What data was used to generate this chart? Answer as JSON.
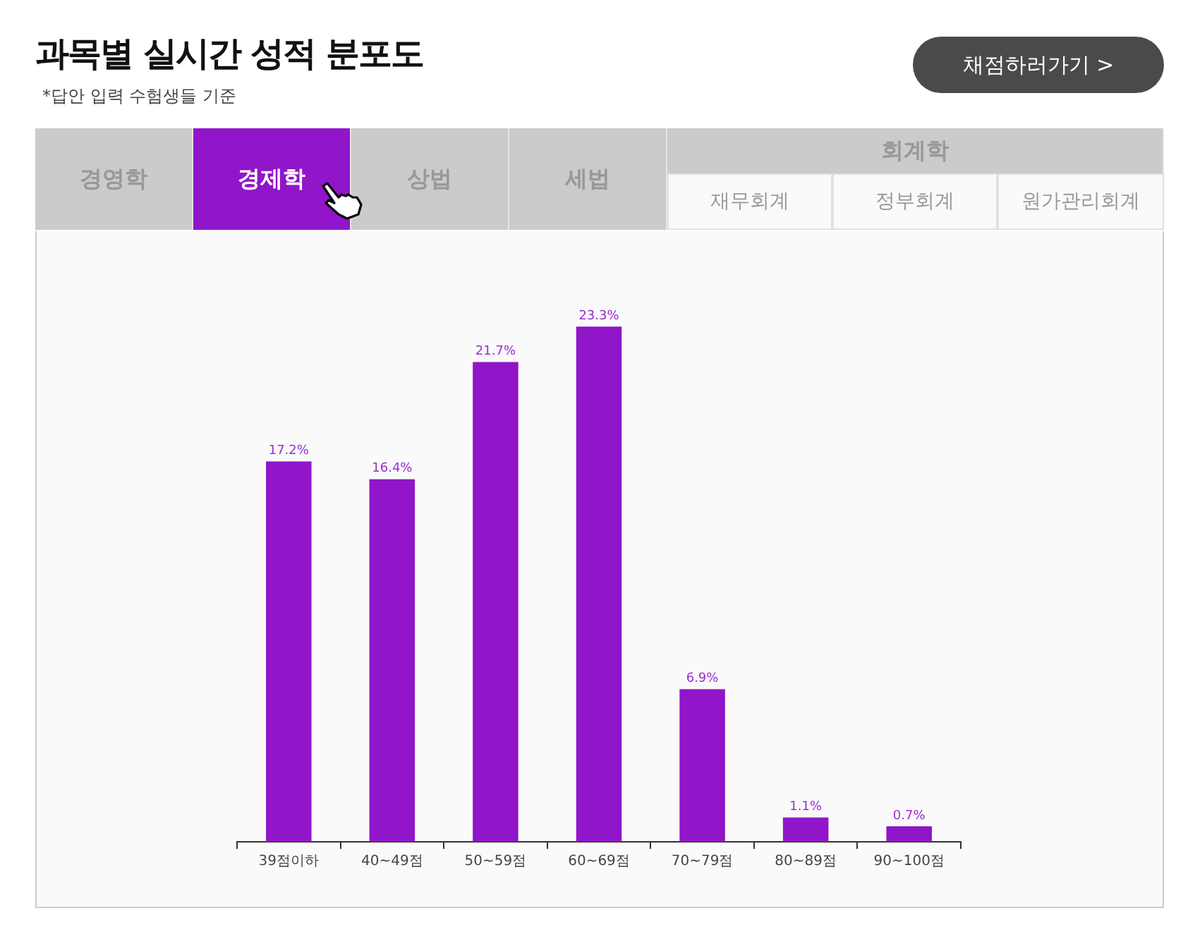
{
  "chart_data": {
    "type": "bar",
    "title": "과목별 실시간 성적 분포도",
    "subtitle": "*답안 입력 수험생들 기준",
    "categories": [
      "39점이하",
      "40~49점",
      "50~59점",
      "60~69점",
      "70~79점",
      "80~89점",
      "90~100점"
    ],
    "values": [
      17.2,
      16.4,
      21.7,
      23.3,
      6.9,
      1.1,
      0.7
    ],
    "value_labels": [
      "17.2%",
      "16.4%",
      "21.7%",
      "23.3%",
      "6.9%",
      "1.1%",
      "0.7%"
    ],
    "color": "#9115c9",
    "tick_labels": "x",
    "grid": false,
    "legend": false,
    "annotations": [
      "경영학",
      "경제학",
      "상법",
      "세법",
      "회계학",
      "재무회계",
      "정부회계",
      "원가관리회계",
      "채점하러가기 >"
    ]
  }
}
